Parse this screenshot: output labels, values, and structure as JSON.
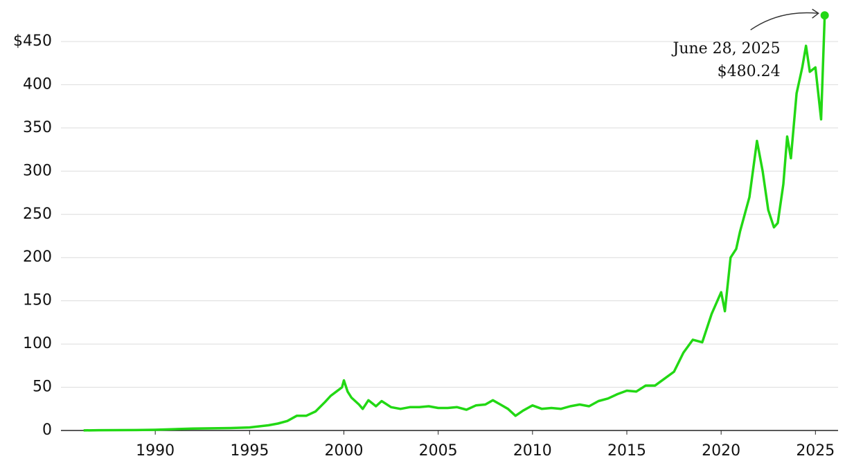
{
  "chart_data": {
    "type": "line",
    "color": "#22d814",
    "grid": true,
    "xlim": [
      1985,
      2026.2
    ],
    "xticks": [
      1990,
      1995,
      2000,
      2005,
      2010,
      2015,
      2020,
      2025
    ],
    "ylim": [
      0,
      490
    ],
    "yticks": [
      0,
      50,
      100,
      150,
      200,
      250,
      300,
      350,
      400,
      {
        "value": 450,
        "label": "$450"
      }
    ],
    "x": [
      1986.2,
      1987,
      1988,
      1989,
      1990,
      1991,
      1992,
      1993,
      1994,
      1995,
      1996,
      1996.5,
      1997,
      1997.5,
      1998,
      1998.5,
      1999,
      1999.3,
      1999.6,
      1999.9,
      2000.0,
      2000.2,
      2000.4,
      2000.8,
      2001,
      2001.3,
      2001.7,
      2002,
      2002.5,
      2003,
      2003.5,
      2004,
      2004.5,
      2005,
      2005.5,
      2006,
      2006.5,
      2007,
      2007.5,
      2007.9,
      2008.3,
      2008.7,
      2009.1,
      2009.5,
      2010,
      2010.5,
      2011,
      2011.5,
      2012,
      2012.5,
      2013,
      2013.5,
      2014,
      2014.5,
      2015,
      2015.5,
      2016,
      2016.5,
      2017,
      2017.5,
      2018,
      2018.5,
      2019,
      2019.5,
      2020,
      2020.2,
      2020.5,
      2020.8,
      2021,
      2021.5,
      2021.9,
      2022.2,
      2022.5,
      2022.8,
      2023,
      2023.3,
      2023.5,
      2023.7,
      2024,
      2024.3,
      2024.5,
      2024.7,
      2025,
      2025.3,
      2025.49
    ],
    "values": [
      0.1,
      0.3,
      0.4,
      0.5,
      0.8,
      1.5,
      2.2,
      2.5,
      2.8,
      3.5,
      6,
      8,
      11,
      17,
      17,
      22,
      33,
      40,
      45,
      50,
      58,
      45,
      38,
      30,
      25,
      35,
      28,
      34,
      27,
      25,
      27,
      27,
      28,
      26,
      26,
      27,
      24,
      29,
      30,
      35,
      30,
      25,
      17,
      23,
      29,
      25,
      26,
      25,
      28,
      30,
      28,
      34,
      37,
      42,
      46,
      45,
      52,
      52,
      60,
      68,
      90,
      105,
      102,
      135,
      160,
      138,
      200,
      210,
      230,
      270,
      335,
      300,
      255,
      235,
      240,
      285,
      340,
      315,
      390,
      420,
      445,
      415,
      420,
      360,
      480.24
    ],
    "annotation": {
      "date": "June 28, 2025",
      "label": "$480.24",
      "x": 2025.49,
      "value": 480.24
    }
  }
}
